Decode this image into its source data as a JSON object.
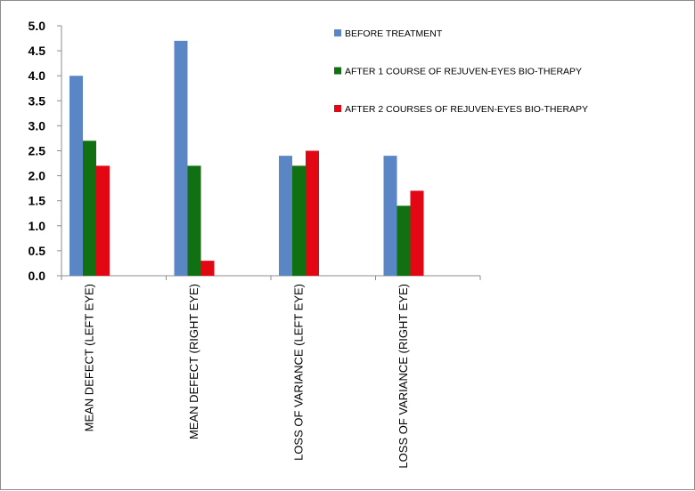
{
  "chart_data": {
    "type": "bar",
    "title": "",
    "xlabel": "",
    "ylabel": "",
    "categories": [
      "MEAN DEFECT (LEFT EYE)",
      "MEAN DEFECT (RIGHT EYE)",
      "LOSS OF VARIANCE (LEFT EYE)",
      "LOSS OF VARIANCE (RIGHT EYE)"
    ],
    "series": [
      {
        "name": "BEFORE TREATMENT",
        "color": "#5b86c5",
        "values": [
          4.0,
          4.7,
          2.4,
          2.4
        ]
      },
      {
        "name": "AFTER 1 COURSE OF REJUVEN-EYES BIO-THERAPY",
        "color": "#117011",
        "values": [
          2.7,
          2.2,
          2.2,
          1.4
        ]
      },
      {
        "name": "AFTER 2 COURSES OF REJUVEN-EYES BIO-THERAPY",
        "color": "#e30613",
        "values": [
          2.2,
          0.3,
          2.5,
          1.7
        ]
      }
    ],
    "ylim": [
      0,
      5
    ],
    "yticks": [
      "0.0",
      "0.5",
      "1.0",
      "1.5",
      "2.0",
      "2.5",
      "3.0",
      "3.5",
      "4.0",
      "4.5",
      "5.0"
    ],
    "legend_position": "top-right",
    "grid": false
  }
}
